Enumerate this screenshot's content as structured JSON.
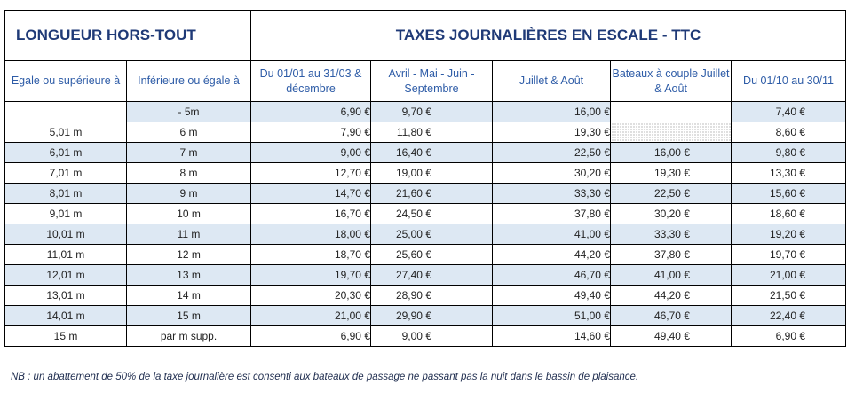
{
  "table": {
    "header_left": "LONGUEUR HORS-TOUT",
    "header_right": "TAXES JOURNALIÈRES EN ESCALE - TTC",
    "columns": [
      "Egale ou supérieure à",
      "Inférieure ou égale à",
      "Du 01/01 au 31/03 & décembre",
      "Avril - Mai - Juin - Septembre",
      "Juillet & Août",
      "Bateaux à couple Juillet & Août",
      "Du 01/10 au 30/11"
    ],
    "rows": [
      [
        "",
        "- 5m",
        "6,90 €",
        "9,70 €",
        "16,00 €",
        "",
        "7,40 €"
      ],
      [
        "5,01 m",
        "6 m",
        "7,90 €",
        "11,80 €",
        "19,30 €",
        "",
        "8,60 €"
      ],
      [
        "6,01 m",
        "7 m",
        "9,00 €",
        "16,40 €",
        "22,50 €",
        "16,00 €",
        "9,80 €"
      ],
      [
        "7,01 m",
        "8 m",
        "12,70 €",
        "19,00 €",
        "30,20 €",
        "19,30 €",
        "13,30 €"
      ],
      [
        "8,01 m",
        "9 m",
        "14,70 €",
        "21,60 €",
        "33,30 €",
        "22,50 €",
        "15,60 €"
      ],
      [
        "9,01 m",
        "10 m",
        "16,70 €",
        "24,50 €",
        "37,80 €",
        "30,20 €",
        "18,60 €"
      ],
      [
        "10,01 m",
        "11 m",
        "18,00 €",
        "25,00 €",
        "41,00 €",
        "33,30 €",
        "19,20 €"
      ],
      [
        "11,01 m",
        "12 m",
        "18,70 €",
        "25,60 €",
        "44,20 €",
        "37,80 €",
        "19,70 €"
      ],
      [
        "12,01 m",
        "13 m",
        "19,70 €",
        "27,40 €",
        "46,70 €",
        "41,00 €",
        "21,00 €"
      ],
      [
        "13,01 m",
        "14 m",
        "20,30 €",
        "28,90 €",
        "49,40 €",
        "44,20 €",
        "21,50 €"
      ],
      [
        "14,01 m",
        "15 m",
        "21,00 €",
        "29,90 €",
        "51,00 €",
        "46,70 €",
        "22,40 €"
      ],
      [
        "15 m",
        "par m supp.",
        "6,90 €",
        "9,00 €",
        "14,60 €",
        "49,40 €",
        "6,90 €"
      ]
    ]
  },
  "note": "NB : un abattement de 50% de la taxe journalière est consenti aux bateaux de passage ne passant pas la nuit dans le bassin de plaisance.",
  "colors": {
    "header_text": "#1f3a77",
    "subheader_text": "#2e5ca7",
    "row_shade": "#dde8f3"
  }
}
